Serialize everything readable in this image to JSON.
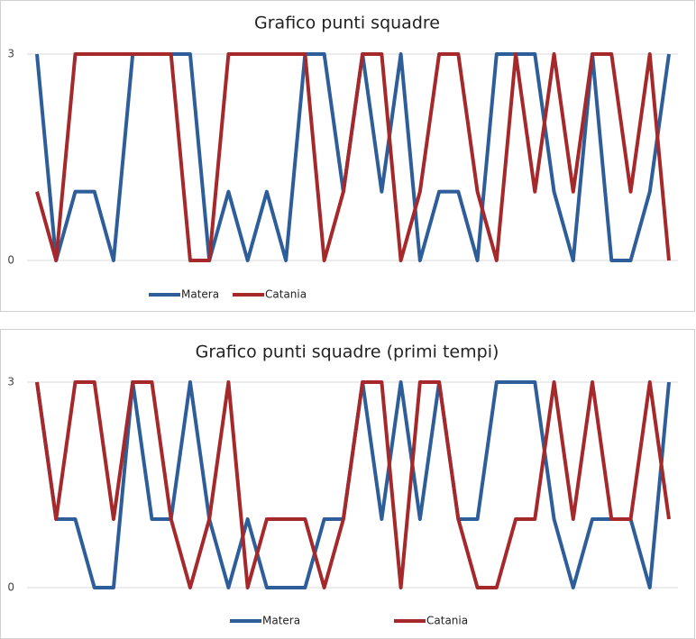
{
  "chart_data": [
    {
      "type": "line",
      "title": "Grafico punti squadre",
      "categories": [
        null,
        null,
        null,
        null,
        null,
        null,
        null,
        null,
        null,
        null,
        null,
        null,
        null,
        null,
        null,
        null,
        null,
        null,
        null,
        null,
        null,
        null,
        null,
        null,
        null,
        null,
        null,
        null,
        null,
        null,
        null,
        null,
        null,
        null
      ],
      "series": [
        {
          "name": "Matera",
          "color": "#2e5e99",
          "values": [
            3,
            0,
            1,
            1,
            0,
            3,
            3,
            3,
            3,
            0,
            1,
            0,
            1,
            0,
            3,
            3,
            1,
            3,
            1,
            3,
            0,
            1,
            1,
            0,
            3,
            3,
            3,
            1,
            0,
            3,
            0,
            0,
            1,
            3
          ]
        },
        {
          "name": "Catania",
          "color": "#a5282b",
          "values": [
            1,
            0,
            3,
            3,
            3,
            3,
            3,
            3,
            0,
            0,
            3,
            3,
            3,
            3,
            3,
            0,
            1,
            3,
            3,
            0,
            1,
            3,
            3,
            1,
            0,
            3,
            1,
            3,
            1,
            3,
            3,
            1,
            3,
            0
          ]
        }
      ],
      "ylim": [
        0,
        3
      ],
      "yticks": [
        0,
        3
      ],
      "grid": true,
      "legend": "bottom"
    },
    {
      "type": "line",
      "title": "Grafico punti squadre (primi tempi)",
      "categories": [
        null,
        null,
        null,
        null,
        null,
        null,
        null,
        null,
        null,
        null,
        null,
        null,
        null,
        null,
        null,
        null,
        null,
        null,
        null,
        null,
        null,
        null,
        null,
        null,
        null,
        null,
        null,
        null,
        null,
        null,
        null,
        null,
        null,
        null
      ],
      "series": [
        {
          "name": "Matera",
          "color": "#2e5e99",
          "values": [
            3,
            1,
            1,
            0,
            0,
            3,
            1,
            1,
            3,
            1,
            0,
            1,
            0,
            0,
            0,
            1,
            1,
            3,
            1,
            3,
            1,
            3,
            1,
            1,
            3,
            3,
            3,
            1,
            0,
            1,
            1,
            1,
            0,
            3
          ]
        },
        {
          "name": "Catania",
          "color": "#a5282b",
          "values": [
            3,
            1,
            3,
            3,
            1,
            3,
            3,
            1,
            0,
            1,
            3,
            0,
            1,
            1,
            1,
            0,
            1,
            3,
            3,
            0,
            3,
            3,
            1,
            0,
            0,
            1,
            1,
            3,
            1,
            3,
            1,
            1,
            3,
            1
          ]
        }
      ],
      "ylim": [
        0,
        3
      ],
      "yticks": [
        0,
        3
      ],
      "grid": true,
      "legend": "bottom"
    }
  ]
}
